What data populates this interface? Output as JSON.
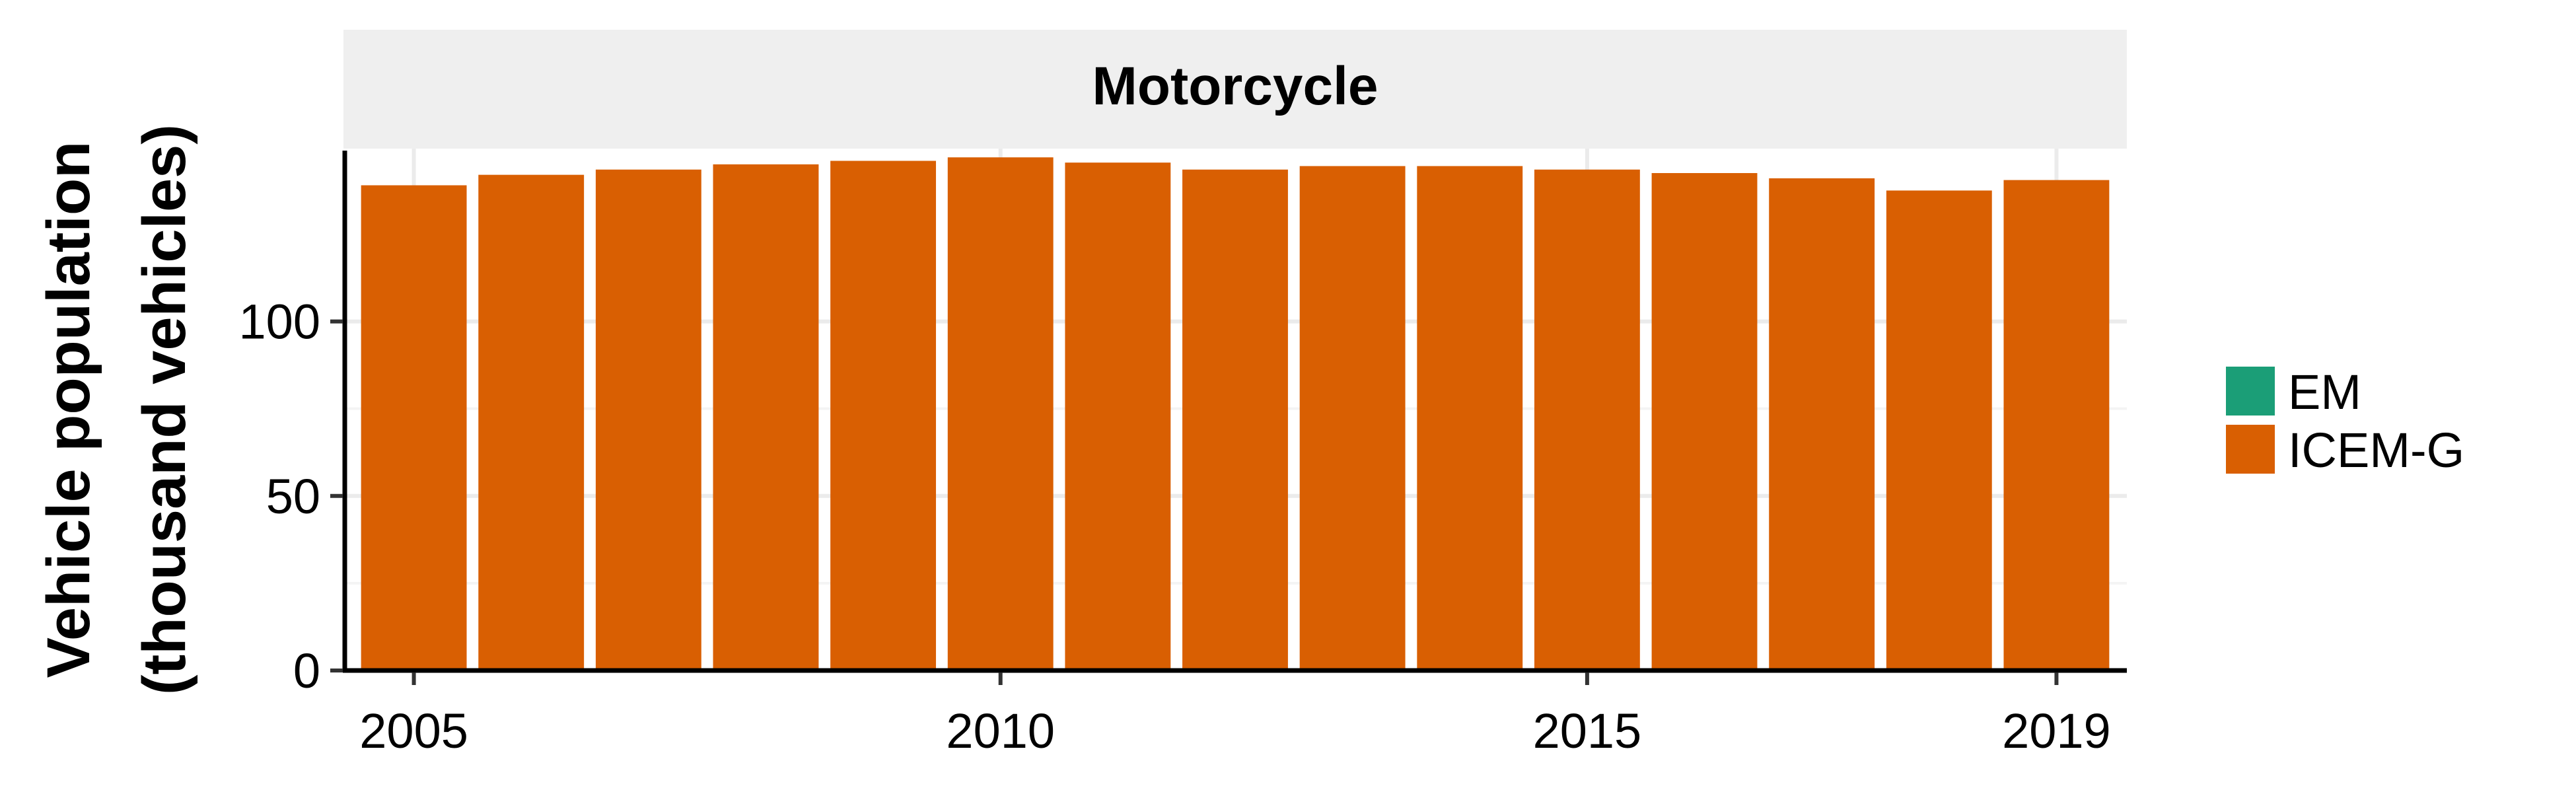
{
  "chart_data": {
    "type": "bar",
    "title": "Motorcycle",
    "ylabel_line1": "Vehicle population",
    "ylabel_line2": "(thousand vehicles)",
    "xlabel": "",
    "x": [
      2005,
      2006,
      2007,
      2008,
      2009,
      2010,
      2011,
      2012,
      2013,
      2014,
      2015,
      2016,
      2017,
      2018,
      2019
    ],
    "series": [
      {
        "name": "EM",
        "color": "#1b9e77",
        "values": [
          0,
          0,
          0,
          0,
          0,
          0,
          0,
          0,
          0,
          0,
          0,
          0,
          0,
          0,
          0
        ]
      },
      {
        "name": "ICEM-G",
        "color": "#d95f02",
        "values": [
          139,
          142,
          143.5,
          145,
          146,
          147,
          145.5,
          143.5,
          144.5,
          144.5,
          143.5,
          142.5,
          141,
          137.5,
          140.5
        ]
      }
    ],
    "xticks": [
      "2005",
      "2010",
      "2015",
      "2019"
    ],
    "xtick_values": [
      2005,
      2010,
      2015,
      2019
    ],
    "yticks": [
      "0",
      "50",
      "100"
    ],
    "ytick_values": [
      0,
      50,
      100
    ],
    "ylim": [
      0,
      149.5
    ],
    "grid": true,
    "legend_position": "right",
    "strip_color": "#efefef"
  }
}
